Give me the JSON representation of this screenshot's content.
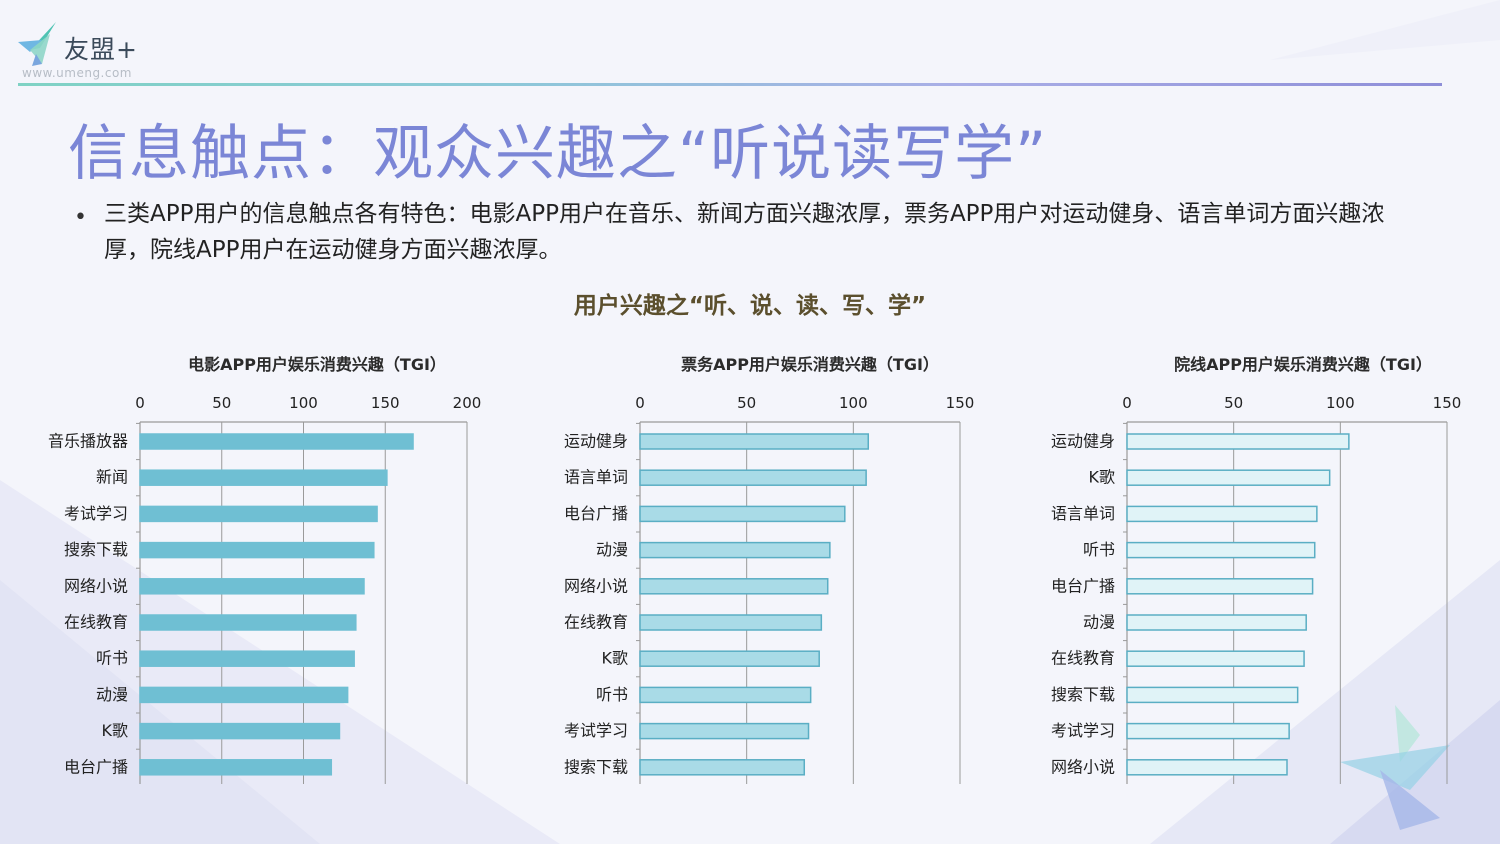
{
  "header": {
    "logo_text": "友盟+",
    "logo_url": "www.umeng.com"
  },
  "page_title": "信息触点：观众兴趣之“听说读写学”",
  "bullet_text": "三类APP用户的信息触点各有特色：电影APP用户在音乐、新闻方面兴趣浓厚，票务APP用户对运动健身、语言单词方面兴趣浓厚，院线APP用户在运动健身方面兴趣浓厚。",
  "section_title": "用户兴趣之“听、说、读、写、学”",
  "colors": {
    "title": "#7b86d6",
    "series_1": "#6fbfd3",
    "series_2": "#a9dbe7",
    "series_3": "#e0f3f7",
    "bar_stroke": "#5aaec4",
    "grid": "#9a9a9a"
  },
  "chart_data": [
    {
      "type": "bar",
      "orientation": "horizontal",
      "title": "电影APP用户娱乐消费兴趣（TGI）",
      "categories": [
        "音乐播放器",
        "新闻",
        "考试学习",
        "搜索下载",
        "网络小说",
        "在线教育",
        "听书",
        "动漫",
        "K歌",
        "电台广播"
      ],
      "values": [
        167,
        151,
        145,
        143,
        137,
        132,
        131,
        127,
        122,
        117
      ],
      "xlim": [
        0,
        200
      ],
      "xticks": [
        "0",
        "50",
        "100",
        "150",
        "200"
      ],
      "grid": true
    },
    {
      "type": "bar",
      "orientation": "horizontal",
      "title": "票务APP用户娱乐消费兴趣（TGI）",
      "categories": [
        "运动健身",
        "语言单词",
        "电台广播",
        "动漫",
        "网络小说",
        "在线教育",
        "K歌",
        "听书",
        "考试学习",
        "搜索下载"
      ],
      "values": [
        107,
        106,
        96,
        89,
        88,
        85,
        84,
        80,
        79,
        77
      ],
      "xlim": [
        0,
        150
      ],
      "xticks": [
        "0",
        "50",
        "100",
        "150"
      ],
      "grid": true
    },
    {
      "type": "bar",
      "orientation": "horizontal",
      "title": "院线APP用户娱乐消费兴趣（TGI）",
      "categories": [
        "运动健身",
        "K歌",
        "语言单词",
        "听书",
        "电台广播",
        "动漫",
        "在线教育",
        "搜索下载",
        "考试学习",
        "网络小说"
      ],
      "values": [
        104,
        95,
        89,
        88,
        87,
        84,
        83,
        80,
        76,
        75
      ],
      "xlim": [
        0,
        150
      ],
      "xticks": [
        "0",
        "50",
        "100",
        "150"
      ],
      "grid": true
    }
  ]
}
